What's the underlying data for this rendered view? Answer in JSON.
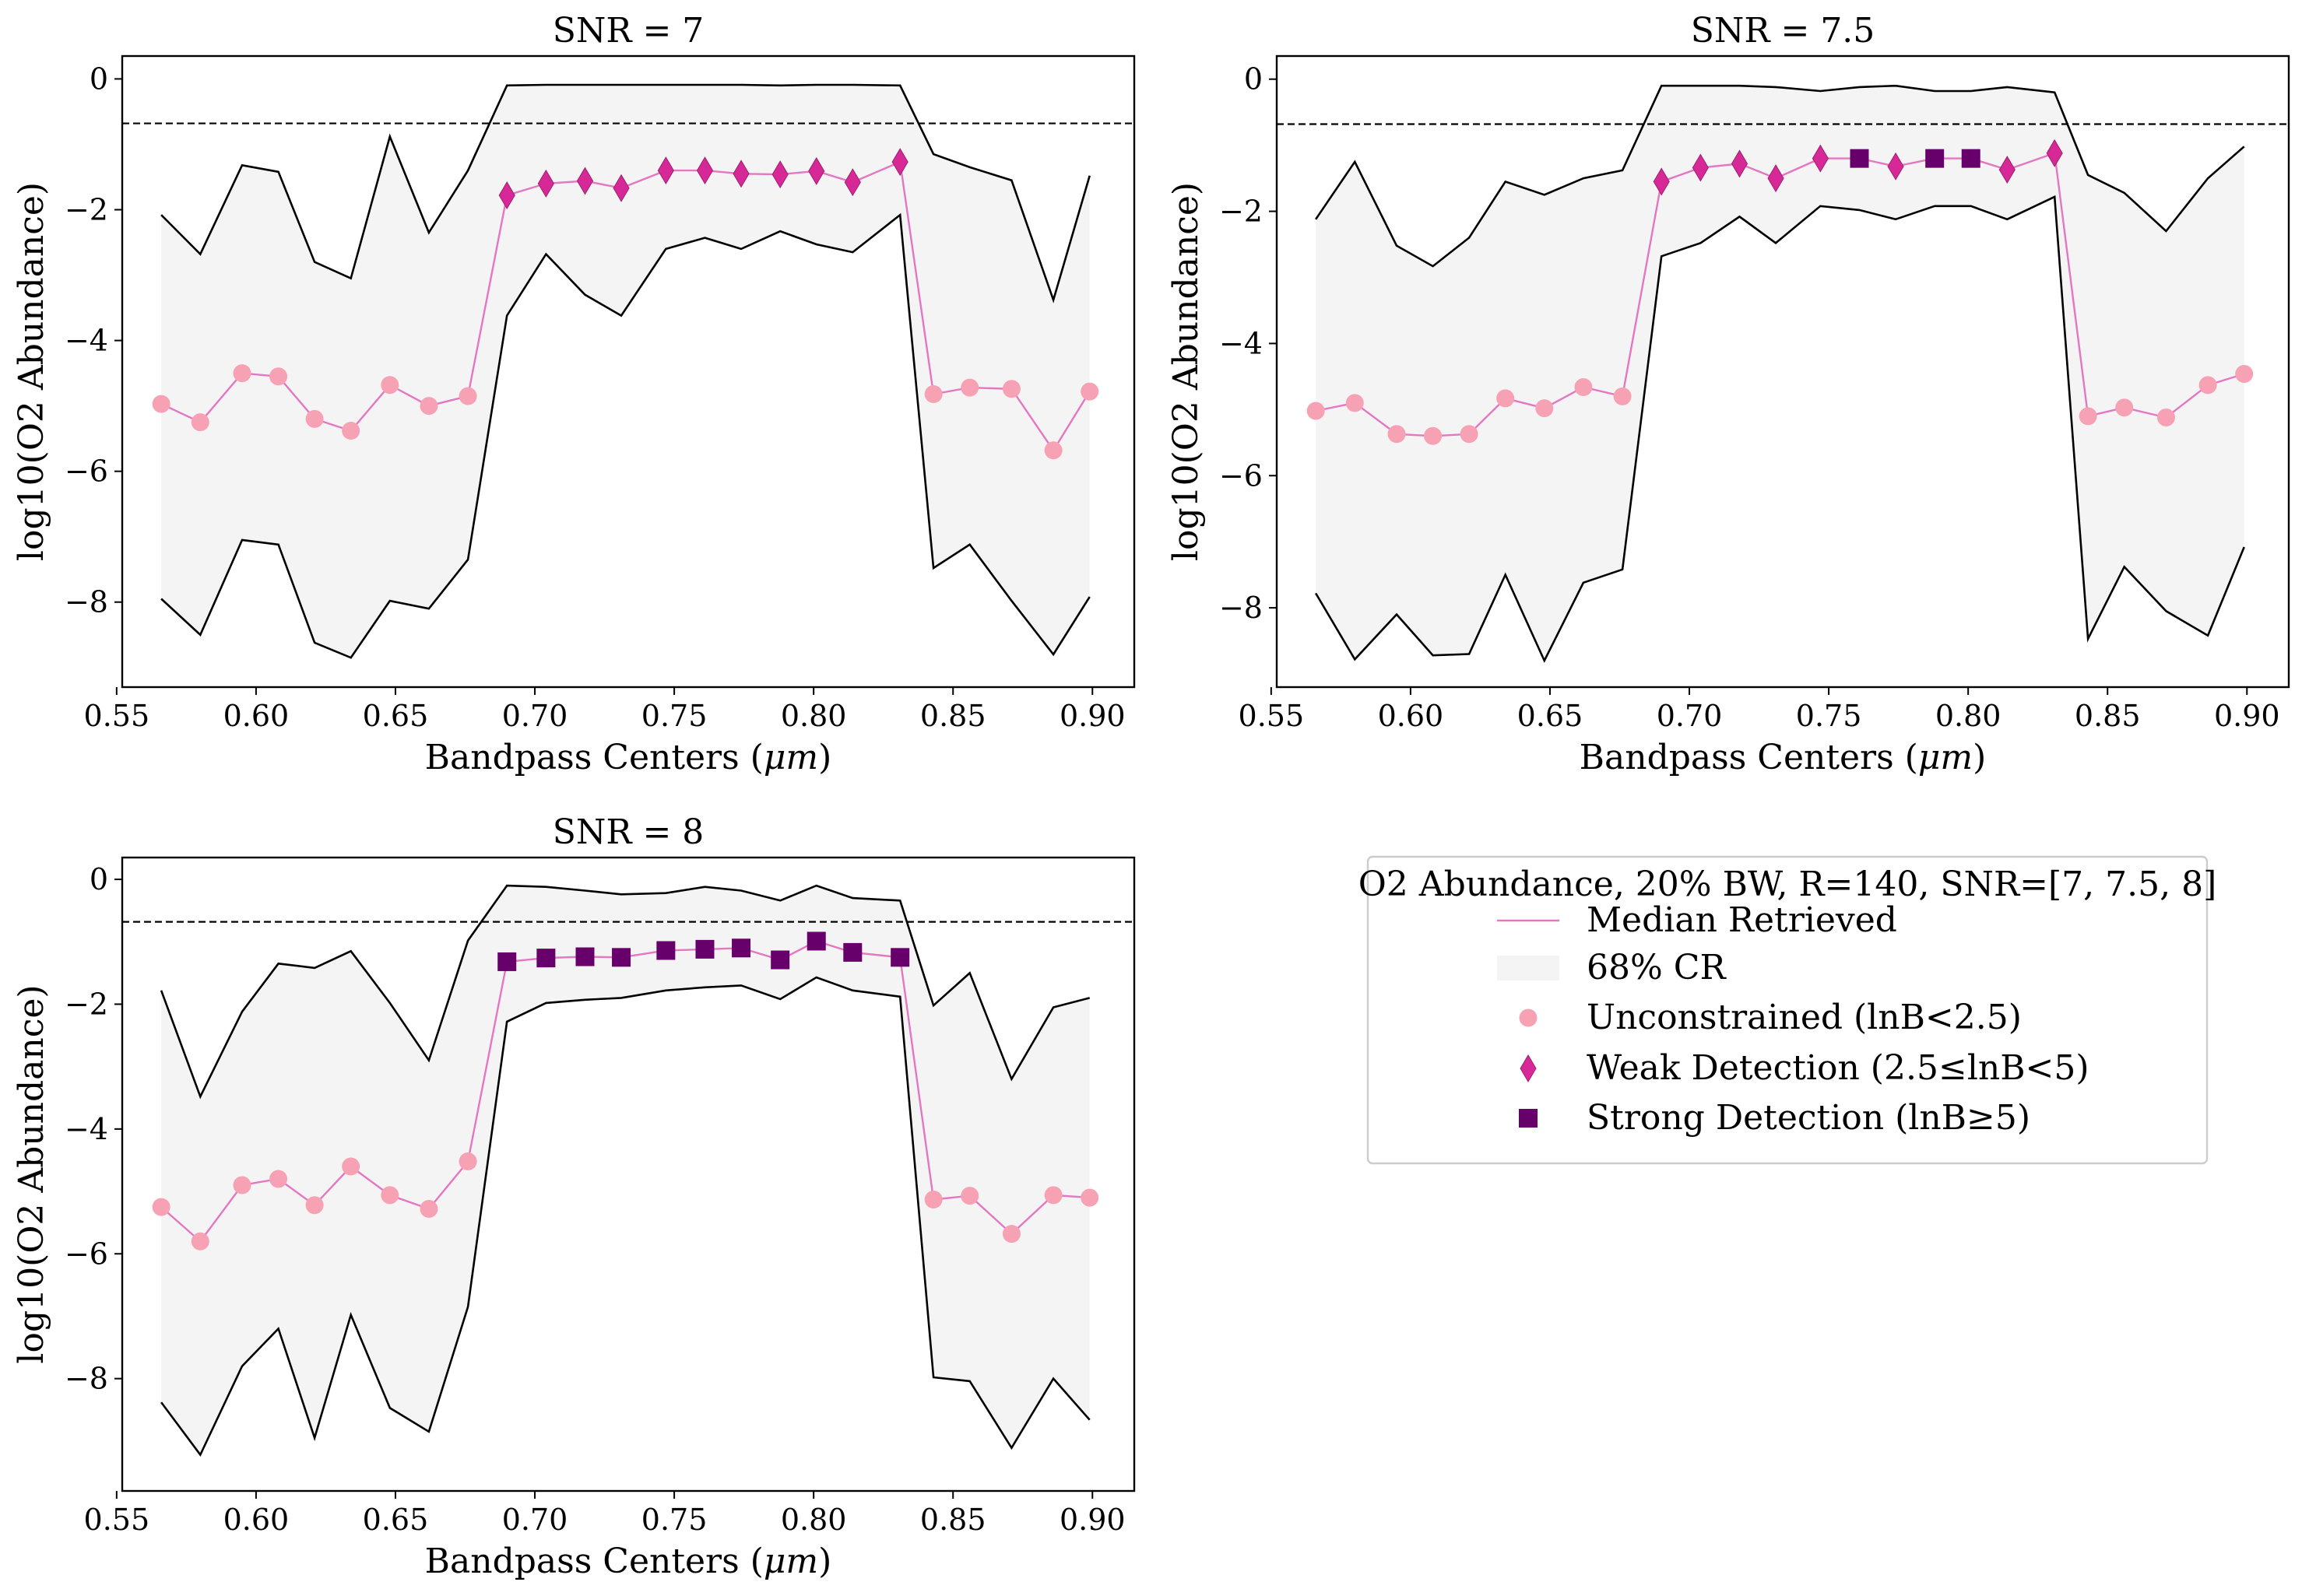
{
  "colors": {
    "median": "#e377c2",
    "band": "#f4f4f4",
    "unconstrained": "#f7a1b4",
    "weak": "#d62896",
    "strong": "#67006b"
  },
  "legend": {
    "title": "O2 Abundance, 20% BW, R=140, SNR=[7, 7.5, 8]",
    "entries": [
      {
        "key": "median",
        "label": "Median Retrieved",
        "icon": "line"
      },
      {
        "key": "band",
        "label": "68% CR",
        "icon": "patch"
      },
      {
        "key": "unconstrained",
        "label": "Unconstrained (lnB<2.5)",
        "icon": "circle"
      },
      {
        "key": "weak",
        "label": "Weak Detection (2.5≤lnB<5)",
        "icon": "diamond"
      },
      {
        "key": "strong",
        "label": "Strong Detection (lnB≥5)",
        "icon": "square"
      }
    ]
  },
  "chart_data": [
    {
      "type": "line",
      "title": "SNR = 7",
      "xlabel": "Bandpass Centers (",
      "xlabel_unit": "μm",
      "xlabel_close": ")",
      "ylabel": "log10(O2 Abundance)",
      "xlim": [
        0.552,
        0.915
      ],
      "ylim": [
        -9.3,
        0.35
      ],
      "xticks": [
        0.55,
        0.6,
        0.65,
        0.7,
        0.75,
        0.8,
        0.85,
        0.9
      ],
      "xtick_labels": [
        "0.55",
        "0.60",
        "0.65",
        "0.70",
        "0.75",
        "0.80",
        "0.85",
        "0.90"
      ],
      "yticks": [
        0,
        -2,
        -4,
        -6,
        -8
      ],
      "ytick_labels": [
        "0",
        "−2",
        "−4",
        "−6",
        "−8"
      ],
      "reference_line": -0.68,
      "x": [
        0.566,
        0.58,
        0.595,
        0.608,
        0.621,
        0.634,
        0.648,
        0.662,
        0.676,
        0.69,
        0.704,
        0.718,
        0.731,
        0.747,
        0.761,
        0.774,
        0.788,
        0.801,
        0.814,
        0.831,
        0.843,
        0.856,
        0.871,
        0.886,
        0.899
      ],
      "median": [
        -4.97,
        -5.25,
        -4.5,
        -4.55,
        -5.2,
        -5.38,
        -4.68,
        -5.0,
        -4.85,
        -1.78,
        -1.6,
        -1.56,
        -1.67,
        -1.4,
        -1.4,
        -1.45,
        -1.46,
        -1.41,
        -1.58,
        -1.27,
        -4.82,
        -4.72,
        -4.74,
        -5.68,
        -4.78
      ],
      "upper": [
        -2.08,
        -2.68,
        -1.32,
        -1.42,
        -2.8,
        -3.05,
        -0.88,
        -2.35,
        -1.4,
        -0.1,
        -0.09,
        -0.09,
        -0.09,
        -0.09,
        -0.09,
        -0.09,
        -0.1,
        -0.09,
        -0.09,
        -0.1,
        -1.15,
        -1.35,
        -1.55,
        -3.38,
        -1.48
      ],
      "lower": [
        -7.95,
        -8.5,
        -7.05,
        -7.12,
        -8.62,
        -8.85,
        -7.98,
        -8.1,
        -7.35,
        -3.62,
        -2.68,
        -3.3,
        -3.62,
        -2.6,
        -2.43,
        -2.6,
        -2.33,
        -2.53,
        -2.65,
        -2.08,
        -7.48,
        -7.12,
        -7.98,
        -8.8,
        -7.92
      ],
      "class": [
        "u",
        "u",
        "u",
        "u",
        "u",
        "u",
        "u",
        "u",
        "u",
        "w",
        "w",
        "w",
        "w",
        "w",
        "w",
        "w",
        "w",
        "w",
        "w",
        "w",
        "u",
        "u",
        "u",
        "u",
        "u"
      ]
    },
    {
      "type": "line",
      "title": "SNR = 7.5",
      "xlabel": "Bandpass Centers (",
      "xlabel_unit": "μm",
      "xlabel_close": ")",
      "ylabel": "log10(O2 Abundance)",
      "xlim": [
        0.552,
        0.915
      ],
      "ylim": [
        -9.2,
        0.35
      ],
      "xticks": [
        0.55,
        0.6,
        0.65,
        0.7,
        0.75,
        0.8,
        0.85,
        0.9
      ],
      "xtick_labels": [
        "0.55",
        "0.60",
        "0.65",
        "0.70",
        "0.75",
        "0.80",
        "0.85",
        "0.90"
      ],
      "yticks": [
        0,
        -2,
        -4,
        -6,
        -8
      ],
      "ytick_labels": [
        "0",
        "−2",
        "−4",
        "−6",
        "−8"
      ],
      "reference_line": -0.68,
      "x": [
        0.566,
        0.58,
        0.595,
        0.608,
        0.621,
        0.634,
        0.648,
        0.662,
        0.676,
        0.69,
        0.704,
        0.718,
        0.731,
        0.747,
        0.761,
        0.774,
        0.788,
        0.801,
        0.814,
        0.831,
        0.843,
        0.856,
        0.871,
        0.886,
        0.899
      ],
      "median": [
        -5.02,
        -4.9,
        -5.37,
        -5.4,
        -5.37,
        -4.83,
        -4.98,
        -4.66,
        -4.8,
        -1.55,
        -1.34,
        -1.28,
        -1.5,
        -1.2,
        -1.2,
        -1.32,
        -1.2,
        -1.2,
        -1.37,
        -1.12,
        -5.1,
        -4.97,
        -5.12,
        -4.63,
        -4.46
      ],
      "upper": [
        -2.12,
        -1.25,
        -2.52,
        -2.83,
        -2.4,
        -1.55,
        -1.75,
        -1.5,
        -1.38,
        -0.1,
        -0.1,
        -0.1,
        -0.12,
        -0.18,
        -0.12,
        -0.1,
        -0.18,
        -0.18,
        -0.12,
        -0.2,
        -1.45,
        -1.72,
        -2.3,
        -1.5,
        -1.02
      ],
      "lower": [
        -7.78,
        -8.78,
        -8.1,
        -8.72,
        -8.7,
        -7.5,
        -8.8,
        -7.62,
        -7.42,
        -2.68,
        -2.48,
        -2.08,
        -2.48,
        -1.92,
        -1.98,
        -2.12,
        -1.92,
        -1.92,
        -2.12,
        -1.78,
        -8.47,
        -7.38,
        -8.05,
        -8.42,
        -7.08
      ],
      "class": [
        "u",
        "u",
        "u",
        "u",
        "u",
        "u",
        "u",
        "u",
        "u",
        "w",
        "w",
        "w",
        "w",
        "w",
        "s",
        "w",
        "s",
        "s",
        "w",
        "w",
        "u",
        "u",
        "u",
        "u",
        "u"
      ]
    },
    {
      "type": "line",
      "title": "SNR = 8",
      "xlabel": "Bandpass Centers (",
      "xlabel_unit": "μm",
      "xlabel_close": ")",
      "ylabel": "log10(O2 Abundance)",
      "xlim": [
        0.552,
        0.915
      ],
      "ylim": [
        -9.8,
        0.35
      ],
      "xticks": [
        0.55,
        0.6,
        0.65,
        0.7,
        0.75,
        0.8,
        0.85,
        0.9
      ],
      "xtick_labels": [
        "0.55",
        "0.60",
        "0.65",
        "0.70",
        "0.75",
        "0.80",
        "0.85",
        "0.90"
      ],
      "yticks": [
        0,
        -2,
        -4,
        -6,
        -8
      ],
      "ytick_labels": [
        "0",
        "−2",
        "−4",
        "−6",
        "−8"
      ],
      "reference_line": -0.68,
      "x": [
        0.566,
        0.58,
        0.595,
        0.608,
        0.621,
        0.634,
        0.648,
        0.662,
        0.676,
        0.69,
        0.704,
        0.718,
        0.731,
        0.747,
        0.761,
        0.774,
        0.788,
        0.801,
        0.814,
        0.831,
        0.843,
        0.856,
        0.871,
        0.886,
        0.899
      ],
      "median": [
        -5.25,
        -5.8,
        -4.9,
        -4.8,
        -5.22,
        -4.6,
        -5.06,
        -5.28,
        -4.52,
        -1.32,
        -1.26,
        -1.24,
        -1.25,
        -1.14,
        -1.12,
        -1.1,
        -1.29,
        -0.99,
        -1.17,
        -1.25,
        -5.13,
        -5.07,
        -5.68,
        -5.06,
        -5.1
      ],
      "upper": [
        -1.78,
        -3.48,
        -2.12,
        -1.35,
        -1.42,
        -1.15,
        -1.98,
        -2.9,
        -0.98,
        -0.1,
        -0.12,
        -0.18,
        -0.24,
        -0.22,
        -0.12,
        -0.18,
        -0.34,
        -0.1,
        -0.3,
        -0.34,
        -2.02,
        -1.5,
        -3.2,
        -2.05,
        -1.9
      ],
      "lower": [
        -8.38,
        -9.22,
        -7.8,
        -7.2,
        -8.95,
        -6.98,
        -8.47,
        -8.85,
        -6.85,
        -2.28,
        -1.98,
        -1.93,
        -1.9,
        -1.78,
        -1.73,
        -1.7,
        -1.92,
        -1.57,
        -1.78,
        -1.88,
        -7.98,
        -8.04,
        -9.11,
        -8.0,
        -8.66
      ],
      "class": [
        "u",
        "u",
        "u",
        "u",
        "u",
        "u",
        "u",
        "u",
        "u",
        "s",
        "s",
        "s",
        "s",
        "s",
        "s",
        "s",
        "s",
        "s",
        "s",
        "s",
        "u",
        "u",
        "u",
        "u",
        "u"
      ]
    }
  ]
}
